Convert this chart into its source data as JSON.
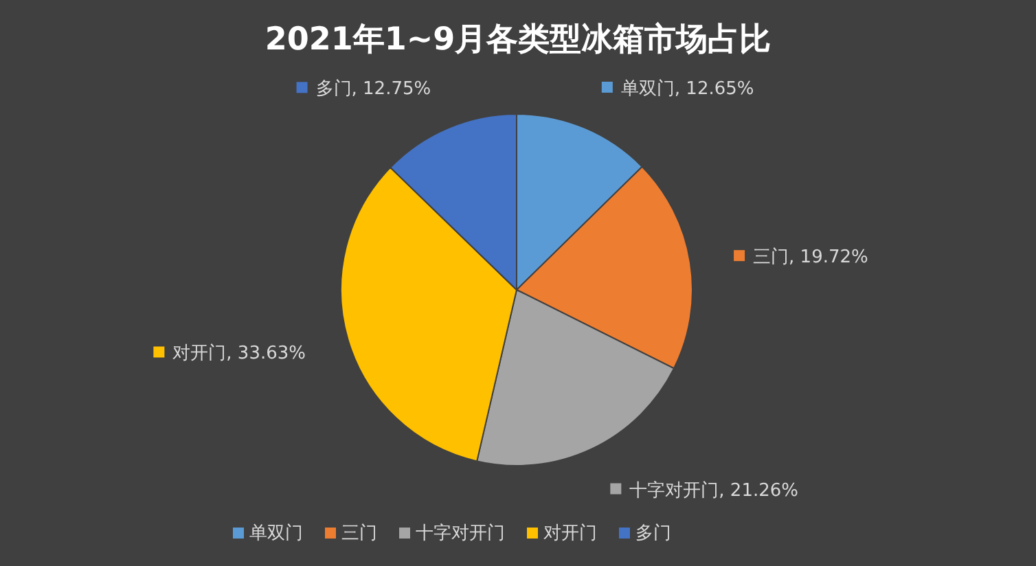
{
  "chart_data": {
    "type": "pie",
    "title": "2021年1~9月各类型冰箱市场占比",
    "categories": [
      "单双门",
      "三门",
      "十字对开门",
      "对开门",
      "多门"
    ],
    "values": [
      12.65,
      19.72,
      21.26,
      33.63,
      12.75
    ],
    "colors": [
      "#5b9bd5",
      "#ed7d31",
      "#a5a5a5",
      "#ffc000",
      "#4472c4"
    ],
    "value_labels": [
      "单双门, 12.65%",
      "三门, 19.72%",
      "十字对开门, 21.26%",
      "对开门, 33.63%",
      "多门, 12.75%"
    ],
    "legend": "bottom"
  }
}
